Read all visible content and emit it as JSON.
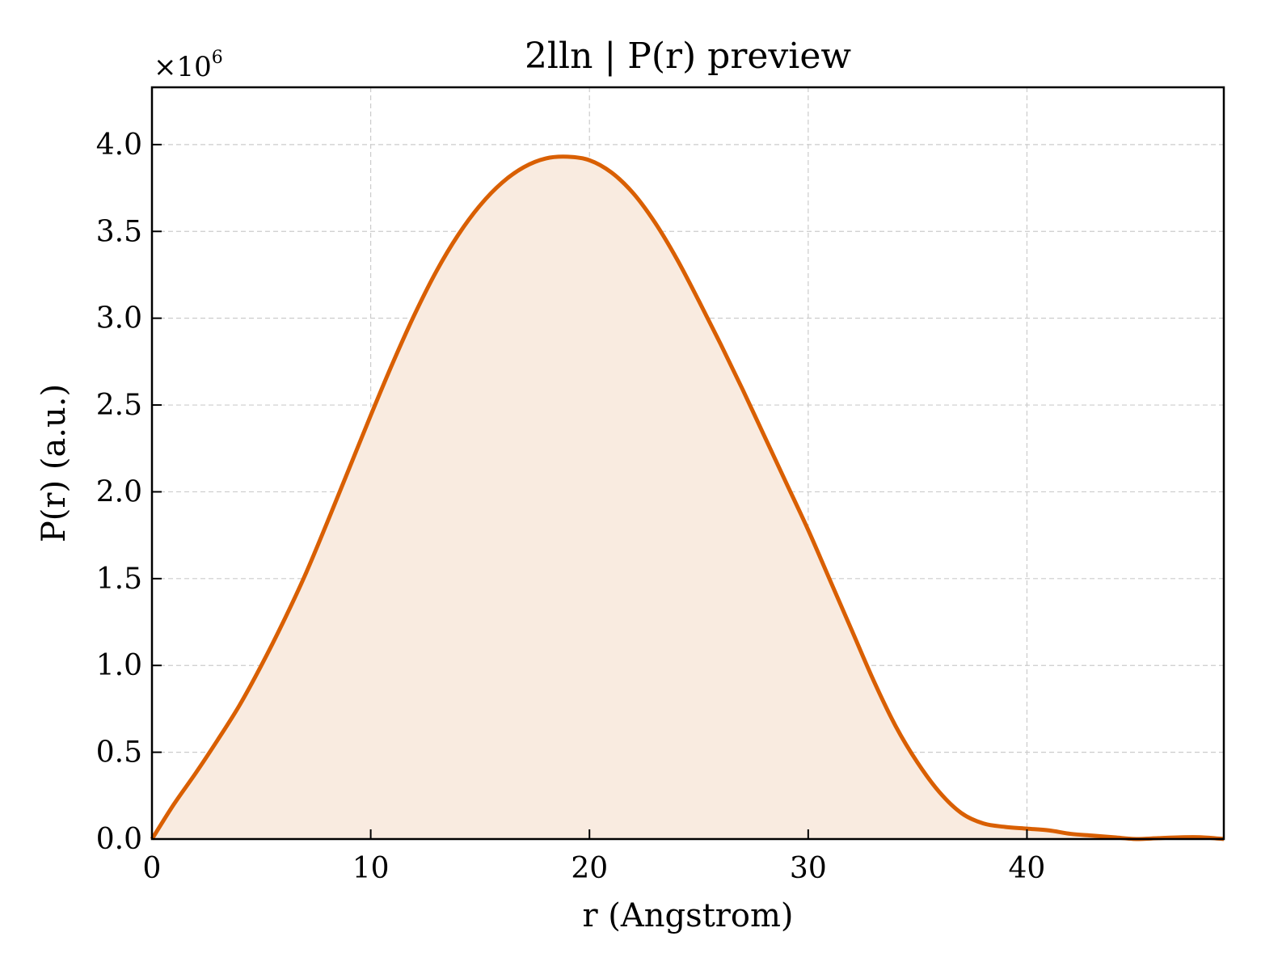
{
  "chart_data": {
    "type": "area",
    "title": "2lln | P(r) preview",
    "xlabel": "r (Angstrom)",
    "ylabel": "P(r) (a.u.)",
    "y_scale_label": "×10",
    "y_scale_exponent": "6",
    "xlim": [
      0,
      49
    ],
    "ylim": [
      0,
      4.33
    ],
    "x_ticks": [
      0,
      10,
      20,
      30,
      40
    ],
    "x_tick_labels": [
      "0",
      "10",
      "20",
      "30",
      "40"
    ],
    "y_ticks": [
      0,
      0.5,
      1.0,
      1.5,
      2.0,
      2.5,
      3.0,
      3.5,
      4.0
    ],
    "y_tick_labels": [
      "0.0",
      "0.5",
      "1.0",
      "1.5",
      "2.0",
      "2.5",
      "3.0",
      "3.5",
      "4.0"
    ],
    "grid": true,
    "series": [
      {
        "color": "#d95f02",
        "fill_color": "#f9ebe0",
        "x": [
          0,
          1,
          2,
          3,
          4,
          5,
          6,
          7,
          8,
          9,
          10,
          11,
          12,
          13,
          14,
          15,
          16,
          17,
          18,
          19,
          20,
          21,
          22,
          23,
          24,
          25,
          26,
          27,
          28,
          29,
          30,
          31,
          32,
          33,
          34,
          35,
          36,
          37,
          38,
          39,
          40,
          41,
          42,
          43,
          44,
          45,
          46,
          47,
          48,
          49
        ],
        "y": [
          0.0,
          0.2,
          0.38,
          0.57,
          0.77,
          1.0,
          1.25,
          1.52,
          1.82,
          2.13,
          2.44,
          2.74,
          3.02,
          3.27,
          3.48,
          3.65,
          3.78,
          3.87,
          3.92,
          3.93,
          3.91,
          3.84,
          3.72,
          3.55,
          3.34,
          3.1,
          2.85,
          2.59,
          2.32,
          2.05,
          1.78,
          1.49,
          1.2,
          0.91,
          0.65,
          0.44,
          0.27,
          0.15,
          0.09,
          0.07,
          0.06,
          0.05,
          0.03,
          0.02,
          0.01,
          0.0,
          0.005,
          0.01,
          0.01,
          0.0
        ]
      }
    ]
  }
}
